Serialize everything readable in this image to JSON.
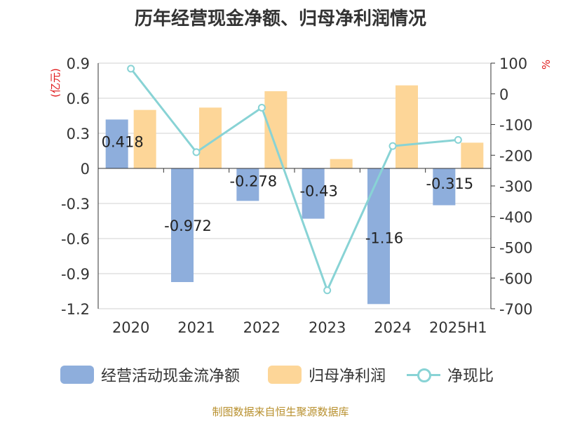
{
  "chart_data": {
    "type": "bar",
    "title": "历年经营现金净额、归母净利润情况",
    "categories": [
      "2020",
      "2021",
      "2022",
      "2023",
      "2024",
      "2025H1"
    ],
    "left_axis": {
      "unit_label": "(亿元)",
      "ylim": [
        -1.2,
        0.9
      ],
      "ticks": [
        "0.9",
        "0.6",
        "0.3",
        "0",
        "-0.3",
        "-0.6",
        "-0.9",
        "-1.2"
      ],
      "tick_values": [
        0.9,
        0.6,
        0.3,
        0,
        -0.3,
        -0.6,
        -0.9,
        -1.2
      ]
    },
    "right_axis": {
      "unit_label": "%",
      "ylim": [
        -700,
        100
      ],
      "ticks": [
        "100",
        "0",
        "-100",
        "-200",
        "-300",
        "-400",
        "-500",
        "-600",
        "-700"
      ],
      "tick_values": [
        100,
        0,
        -100,
        -200,
        -300,
        -400,
        -500,
        -600,
        -700
      ]
    },
    "series": [
      {
        "name": "经营活动现金流净额",
        "kind": "bar",
        "axis": "left",
        "color": "#8eaedc",
        "values": [
          0.418,
          -0.972,
          -0.278,
          -0.43,
          -1.16,
          -0.315
        ],
        "labels": [
          "0.418",
          "-0.972",
          "-0.278",
          "-0.43",
          "-1.16",
          "-0.315"
        ]
      },
      {
        "name": "归母净利润",
        "kind": "bar",
        "axis": "left",
        "color": "#fdd698",
        "values": [
          0.5,
          0.52,
          0.66,
          0.08,
          0.71,
          0.22
        ]
      },
      {
        "name": "净现比",
        "kind": "line",
        "axis": "right",
        "color": "#88d3d5",
        "values": [
          82,
          -190,
          -45,
          -640,
          -170,
          -150
        ]
      }
    ],
    "grid": true,
    "legend_position": "bottom"
  },
  "legend": {
    "items": [
      "经营活动现金流净额",
      "归母净利润",
      "净现比"
    ]
  },
  "footer": {
    "source": "制图数据来自恒生聚源数据库"
  }
}
